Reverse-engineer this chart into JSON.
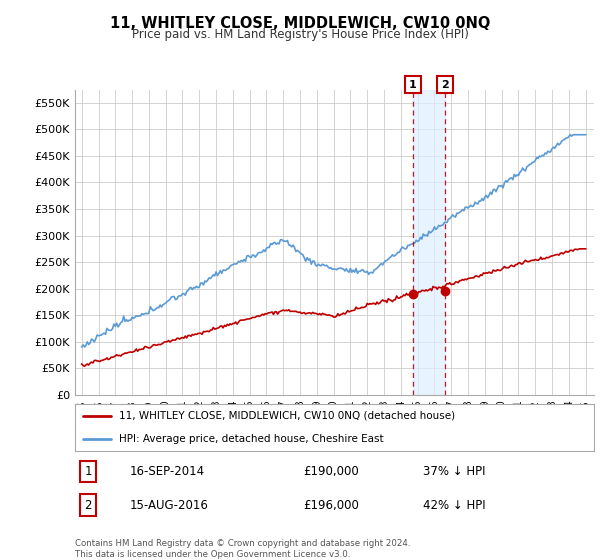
{
  "title": "11, WHITLEY CLOSE, MIDDLEWICH, CW10 0NQ",
  "subtitle": "Price paid vs. HM Land Registry's House Price Index (HPI)",
  "ylabel_ticks": [
    "£0",
    "£50K",
    "£100K",
    "£150K",
    "£200K",
    "£250K",
    "£300K",
    "£350K",
    "£400K",
    "£450K",
    "£500K",
    "£550K"
  ],
  "ytick_values": [
    0,
    50000,
    100000,
    150000,
    200000,
    250000,
    300000,
    350000,
    400000,
    450000,
    500000,
    550000
  ],
  "ylim": [
    0,
    575000
  ],
  "hpi_color": "#5b9bd5",
  "price_color": "#c00000",
  "marker_color": "#c00000",
  "transaction1": {
    "date": "16-SEP-2014",
    "price": 190000,
    "label": "1",
    "year": 2014.71,
    "hpi_pct": "37% ↓ HPI"
  },
  "transaction2": {
    "date": "15-AUG-2016",
    "price": 196000,
    "label": "2",
    "year": 2016.62,
    "hpi_pct": "42% ↓ HPI"
  },
  "legend_line1": "11, WHITLEY CLOSE, MIDDLEWICH, CW10 0NQ (detached house)",
  "legend_line2": "HPI: Average price, detached house, Cheshire East",
  "footer": "Contains HM Land Registry data © Crown copyright and database right 2024.\nThis data is licensed under the Open Government Licence v3.0.",
  "bg_color": "#ffffff",
  "grid_color": "#cccccc",
  "x_start_year": 1995,
  "x_end_year": 2025
}
